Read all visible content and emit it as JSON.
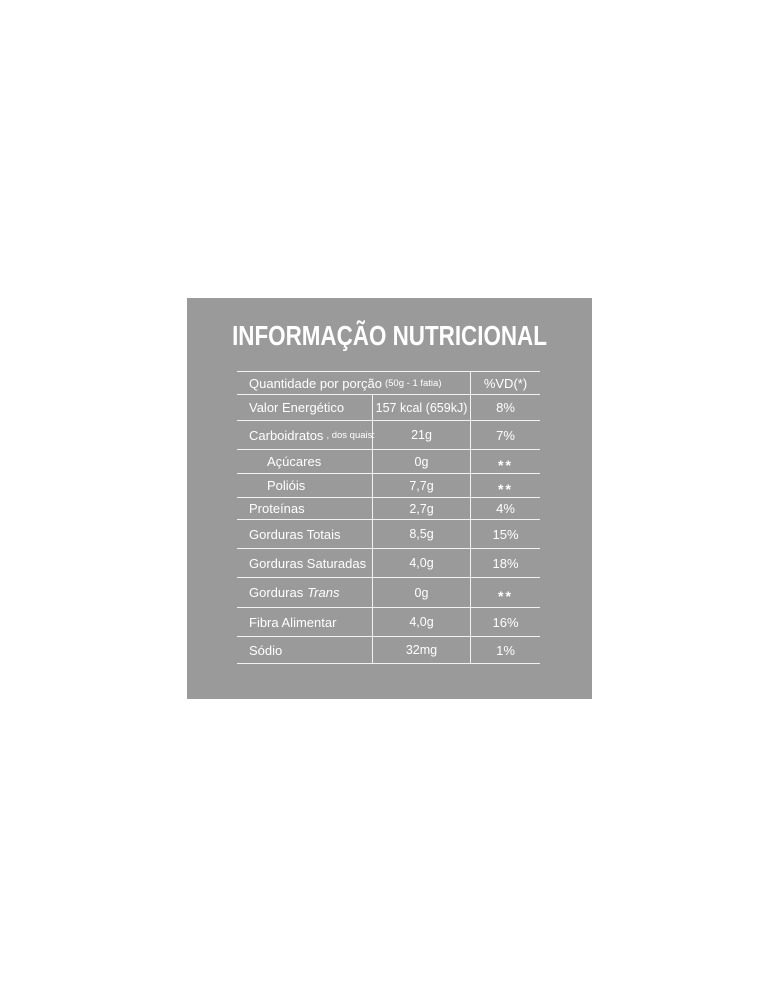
{
  "panel": {
    "title": "INFORMAÇÃO NUTRICIONAL",
    "background_color": "#9a9a9a",
    "text_color": "#ffffff",
    "divider_color": "#f2f2f2"
  },
  "table": {
    "header": {
      "quantity_label": "Quantidade por porção",
      "quantity_note": "(50g - 1 fatia)",
      "dv_label": "%VD(*)"
    },
    "rows": [
      {
        "label": "Valor Energético",
        "value": "157 kcal (659kJ)",
        "dv": "8%"
      },
      {
        "label": "Carboidratos",
        "note": ", dos quais:",
        "value": "21g",
        "dv": "7%"
      },
      {
        "label": "Açúcares",
        "indent": true,
        "value": "0g",
        "dv": "**"
      },
      {
        "label": "Polióis",
        "indent": true,
        "value": "7,7g",
        "dv": "**"
      },
      {
        "label": "Proteínas",
        "value": "2,7g",
        "dv": "4%"
      },
      {
        "label": "Gorduras Totais",
        "value": "8,5g",
        "dv": "15%"
      },
      {
        "label": "Gorduras Saturadas",
        "value": "4,0g",
        "dv": "18%"
      },
      {
        "label": "Gorduras",
        "italic": "Trans",
        "value": "0g",
        "dv": "**"
      },
      {
        "label": "Fibra Alimentar",
        "value": "4,0g",
        "dv": "16%"
      },
      {
        "label": "Sódio",
        "value": "32mg",
        "dv": "1%"
      }
    ]
  }
}
